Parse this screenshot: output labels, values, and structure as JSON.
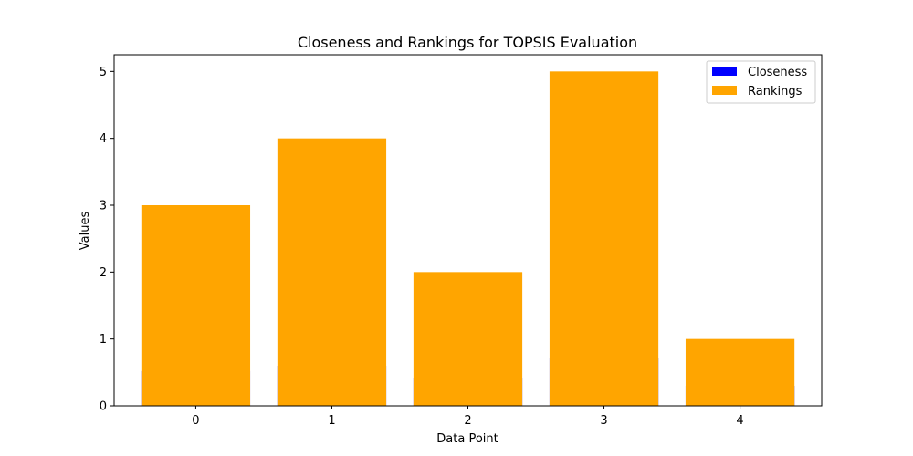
{
  "chart_data": {
    "type": "bar",
    "title": "Closeness and Rankings for TOPSIS Evaluation",
    "xlabel": "Data Point",
    "ylabel": "Values",
    "categories": [
      "0",
      "1",
      "2",
      "3",
      "4"
    ],
    "series": [
      {
        "name": "Closeness",
        "color": "#0000ff",
        "values": [
          0.52,
          0.6,
          0.41,
          0.72,
          0.3
        ]
      },
      {
        "name": "Rankings",
        "color": "#ffa500",
        "values": [
          3,
          4,
          2,
          5,
          1
        ]
      }
    ],
    "ylim": [
      0,
      5.25
    ],
    "yticks": [
      0,
      1,
      2,
      3,
      4,
      5
    ],
    "grid": false,
    "legend_position": "top-right"
  }
}
